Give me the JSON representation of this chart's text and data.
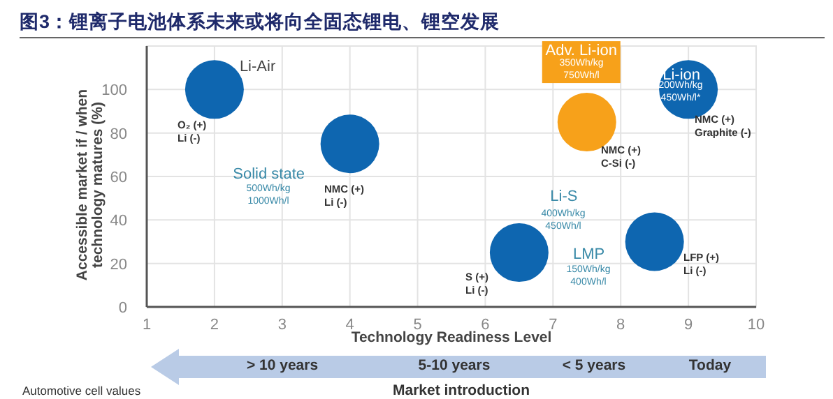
{
  "chart_data": {
    "type": "bubble",
    "title": "图3：锂离子电池体系未来或将向全固态锂电、锂空发展",
    "xlabel": "Technology Readiness Level",
    "ylabel": "Accessible market if / when technology matures (%)",
    "xlim": [
      1,
      10
    ],
    "xticks": [
      1,
      2,
      3,
      4,
      5,
      6,
      7,
      8,
      9,
      10
    ],
    "ylim": [
      0,
      120
    ],
    "yticks": [
      0,
      20,
      40,
      60,
      80,
      100
    ],
    "grid": true,
    "series": [
      {
        "name": "Li-Air",
        "color": "#0e66b0",
        "x": [
          2
        ],
        "values": [
          100
        ],
        "sizes": [
          1
        ]
      },
      {
        "name": "Solid state",
        "color": "#0e66b0",
        "x": [
          4
        ],
        "values": [
          75
        ],
        "sizes": [
          1
        ]
      },
      {
        "name": "Li-S",
        "color": "#0e66b0",
        "x": [
          6.5
        ],
        "values": [
          25
        ],
        "sizes": [
          1
        ]
      },
      {
        "name": "LMP",
        "color": "#0e66b0",
        "x": [
          8.5
        ],
        "values": [
          30
        ],
        "sizes": [
          1
        ]
      },
      {
        "name": "Adv. Li-ion",
        "color": "#f7a11a",
        "x": [
          7.5
        ],
        "values": [
          85
        ],
        "sizes": [
          1
        ]
      },
      {
        "name": "Li-ion",
        "color": "#0e66b0",
        "x": [
          9
        ],
        "values": [
          100
        ],
        "sizes": [
          1
        ]
      }
    ],
    "annotations": [
      "O₂ (+)\nLi (-)",
      "500Wh/kg\n1000Wh/l",
      "NMC (+)\nLi (-)",
      "400Wh/kg\n450Wh/l",
      "S (+)\nLi (-)",
      "150Wh/kg\n400Wh/l",
      "LFP (+)\nLi (-)",
      "350Wh/kg\n750Wh/l",
      "NMC (+)\nC-Si (-)",
      "200Wh/kg\n450Wh/l*",
      "NMC (+)\nGraphite (-)",
      "> 10 years",
      "5-10 years",
      "< 5 years",
      "Today",
      "Market introduction",
      "Automotive cell values"
    ]
  }
}
